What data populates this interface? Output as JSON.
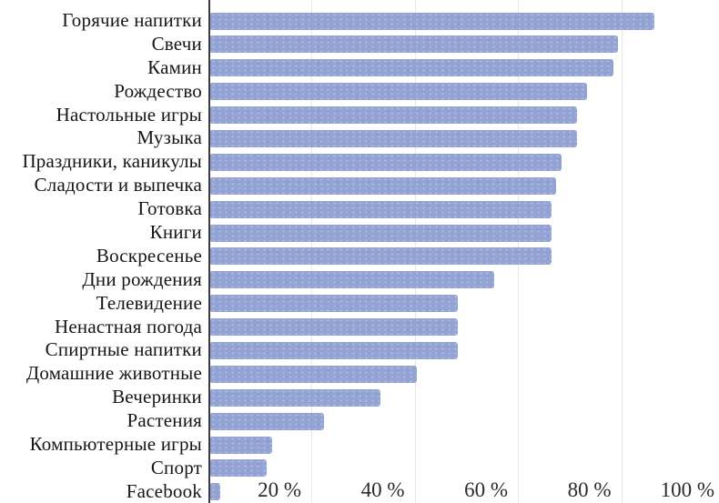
{
  "chart_data": {
    "type": "bar",
    "orientation": "horizontal",
    "title": "",
    "xlabel": "",
    "ylabel": "",
    "xlim": [
      0,
      100
    ],
    "grid": "vertical",
    "legend": "none",
    "categories": [
      "Горячие напитки",
      "Свечи",
      "Камин",
      "Рождество",
      "Настольные игры",
      "Музыка",
      "Праздники, каникулы",
      "Сладости и выпечка",
      "Готовка",
      "Книги",
      "Воскресенье",
      "Дни рождения",
      "Телевидение",
      "Ненастная погода",
      "Спиртные напитки",
      "Домашние животные",
      "Вечеринки",
      "Растения",
      "Компьютерные игры",
      "Спорт",
      "Facebook"
    ],
    "values": [
      86,
      79,
      78,
      73,
      71,
      71,
      68,
      67,
      66,
      66,
      66,
      55,
      48,
      48,
      48,
      40,
      33,
      22,
      12,
      11,
      2
    ],
    "unit": "%",
    "x_ticks": [
      20,
      40,
      60,
      80,
      100
    ],
    "x_tick_labels": [
      "20 %",
      "40 %",
      "60 %",
      "80 %",
      "100 %"
    ],
    "colors": {
      "bar": "#93a3d3",
      "axis_line": "#3c3c3c",
      "gridline": "#e7e7ea",
      "label_text": "#161616",
      "tick_text": "#2b2b2b",
      "background": "#ffffff"
    }
  }
}
